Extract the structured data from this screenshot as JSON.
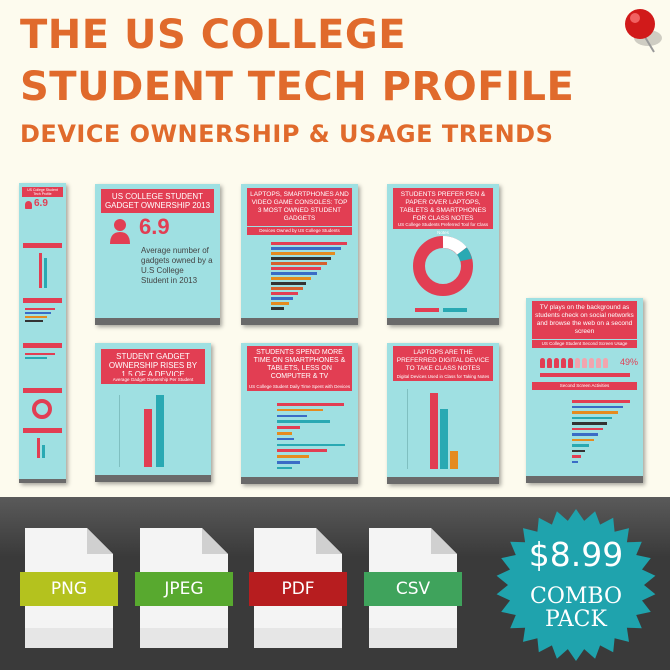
{
  "header": {
    "line1": "THE US COLLEGE",
    "line2": "STUDENT TECH PROFILE",
    "line3": "DEVICE OWNERSHIP & USAGE TRENDS"
  },
  "slides": {
    "strip": {
      "title": "US College Student Tech Profile",
      "stat": "6.9"
    },
    "s1": {
      "title": "US COLLEGE STUDENT GADGET OWNERSHIP 2013",
      "stat": "6.9",
      "desc": "Average number of gadgets owned by a U.S College Student in 2013"
    },
    "s2": {
      "title": "LAPTOPS, SMARTPHONES AND VIDEO GAME CONSOLES: TOP 3 MOST OWNED STUDENT GADGETS",
      "sub": "Devices Owned by US College Students"
    },
    "s3": {
      "title": "STUDENTS PREFER PEN & PAPER OVER LAPTOPS, TABLETS & SMARTPHONES FOR CLASS NOTES",
      "sub": "US College Students Preferred Tool for Class Notes"
    },
    "s4": {
      "title": "TV plays on the background as students check on social networks and browse the web on a second screen",
      "sub": "US College Student Second Screen Usage",
      "pct": "49%",
      "sub2": "Second Screen Activities"
    },
    "s5": {
      "title": "STUDENT GADGET OWNERSHIP RISES BY 1.5 OF A DEVICE",
      "sub": "Average Gadget Ownership Per Student"
    },
    "s6": {
      "title": "STUDENTS SPEND MORE TIME ON SMARTPHONES & TABLETS, LESS ON COMPUTER & TV",
      "sub": "US College Student Daily Time Spent with Devices"
    },
    "s7": {
      "title": "LAPTOPS ARE THE PREFERRED DIGITAL DEVICE TO TAKE CLASS NOTES",
      "sub": "Digital Devices Used in Class for Taking Notes"
    }
  },
  "formats": [
    {
      "label": "PNG",
      "color": "#b4c21e"
    },
    {
      "label": "JPEG",
      "color": "#58a92f"
    },
    {
      "label": "PDF",
      "color": "#b71d1f"
    },
    {
      "label": "CSV",
      "color": "#3fa35c"
    }
  ],
  "offer": {
    "price": "$8.99",
    "line1": "COMBO",
    "line2": "PACK"
  },
  "colors": {
    "title": "#e06a2c",
    "slide_bg": "#9fe0e2",
    "slide_accent": "#e23e53",
    "badge": "#1fa3ad"
  }
}
